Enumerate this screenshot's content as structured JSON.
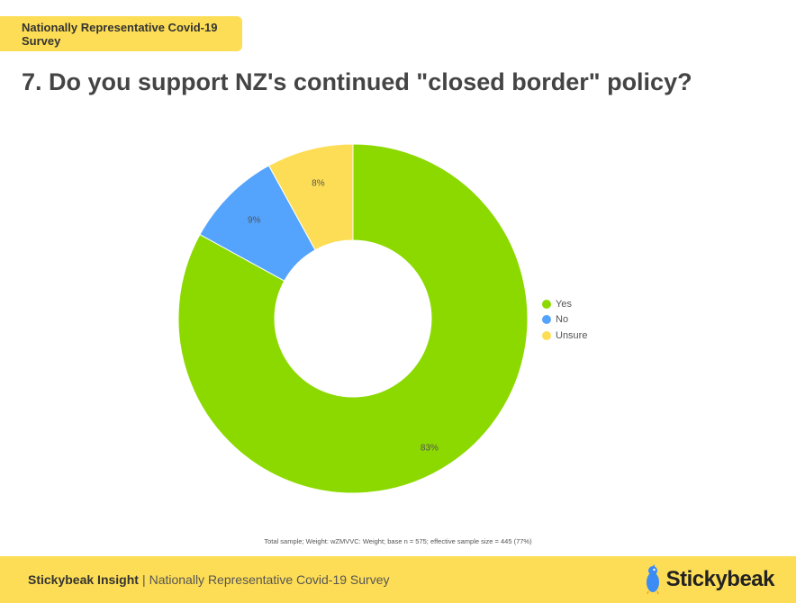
{
  "header": {
    "tag": "Nationally Representative Covid-19 Survey",
    "question": "7. Do you support NZ's continued \"closed border\" policy?"
  },
  "chart_data": {
    "type": "pie",
    "donut": true,
    "categories": [
      "Yes",
      "No",
      "Unsure"
    ],
    "values": [
      83,
      9,
      8
    ],
    "labels": [
      "83%",
      "9%",
      "8%"
    ],
    "colors": [
      "#8cd900",
      "#54a3fc",
      "#fddd55"
    ],
    "legend": "right"
  },
  "footnote": "Total sample; Weight: wZMVVC: Weight; base n = 575; effective sample size = 445 (77%)",
  "footer": {
    "brand": "Stickybeak Insight",
    "separator": "|",
    "subtitle": "Nationally Representative Covid-19 Survey",
    "logo_text": "Stickybeak"
  }
}
